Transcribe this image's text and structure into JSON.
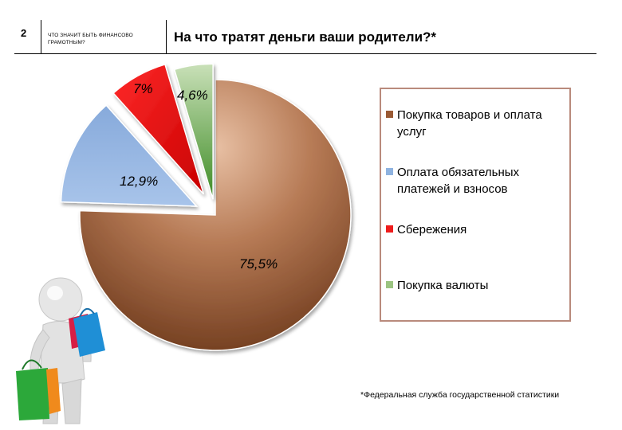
{
  "header": {
    "slide_number": "2",
    "section_label": "ЧТО ЗНАЧИТ БЫТЬ ФИНАНСОВО ГРАМОТНЫМ?",
    "title": "На что тратят деньги ваши родители?*"
  },
  "chart_data": {
    "type": "pie",
    "title": "На что тратят деньги ваши родители?*",
    "exploded": true,
    "style": "3d-shaded",
    "legend_position": "right",
    "slices": [
      {
        "label": "Покупка товаров и оплата услуг",
        "value": 75.5,
        "display": "75,5%",
        "color": "#b0704a"
      },
      {
        "label": "Оплата обязательных платежей и взносов",
        "value": 12.9,
        "display": "12,9%",
        "color": "#8fb3e0"
      },
      {
        "label": "Сбережения",
        "value": 7.0,
        "display": "7%",
        "color": "#ee1c1c"
      },
      {
        "label": "Покупка валюты",
        "value": 4.6,
        "display": "4,6%",
        "color": "#9bc481"
      }
    ]
  },
  "footnote": "*Федеральная служба государственной статистики",
  "illustration": {
    "description_icon": "shopper-figure-icon"
  }
}
